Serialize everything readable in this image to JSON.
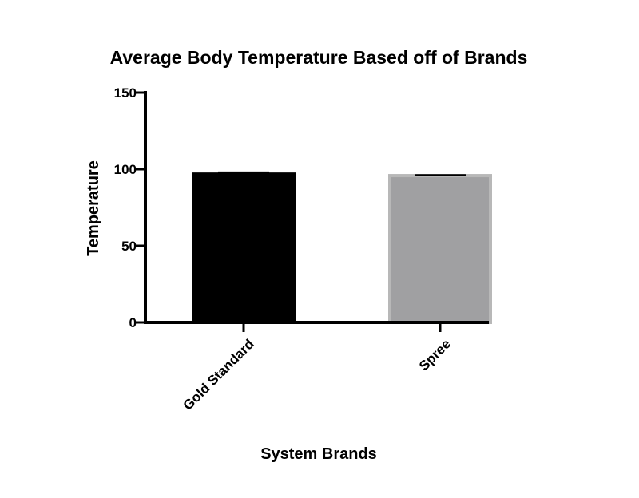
{
  "chart_data": {
    "type": "bar",
    "title": "Average Body Temperature Based off of Brands",
    "xlabel": "System Brands",
    "ylabel": "Temperature",
    "ylim": [
      0,
      150
    ],
    "yticks": [
      "0",
      "50",
      "100",
      "150"
    ],
    "grid": false,
    "categories": [
      "Gold Standard",
      "Spree"
    ],
    "values": [
      96.8,
      95.8
    ],
    "error": [
      1.2,
      0.4
    ],
    "colors": [
      "#000000",
      "#a0a0a2"
    ],
    "edge_colors": [
      "#000000",
      "#b8b8b8"
    ]
  }
}
